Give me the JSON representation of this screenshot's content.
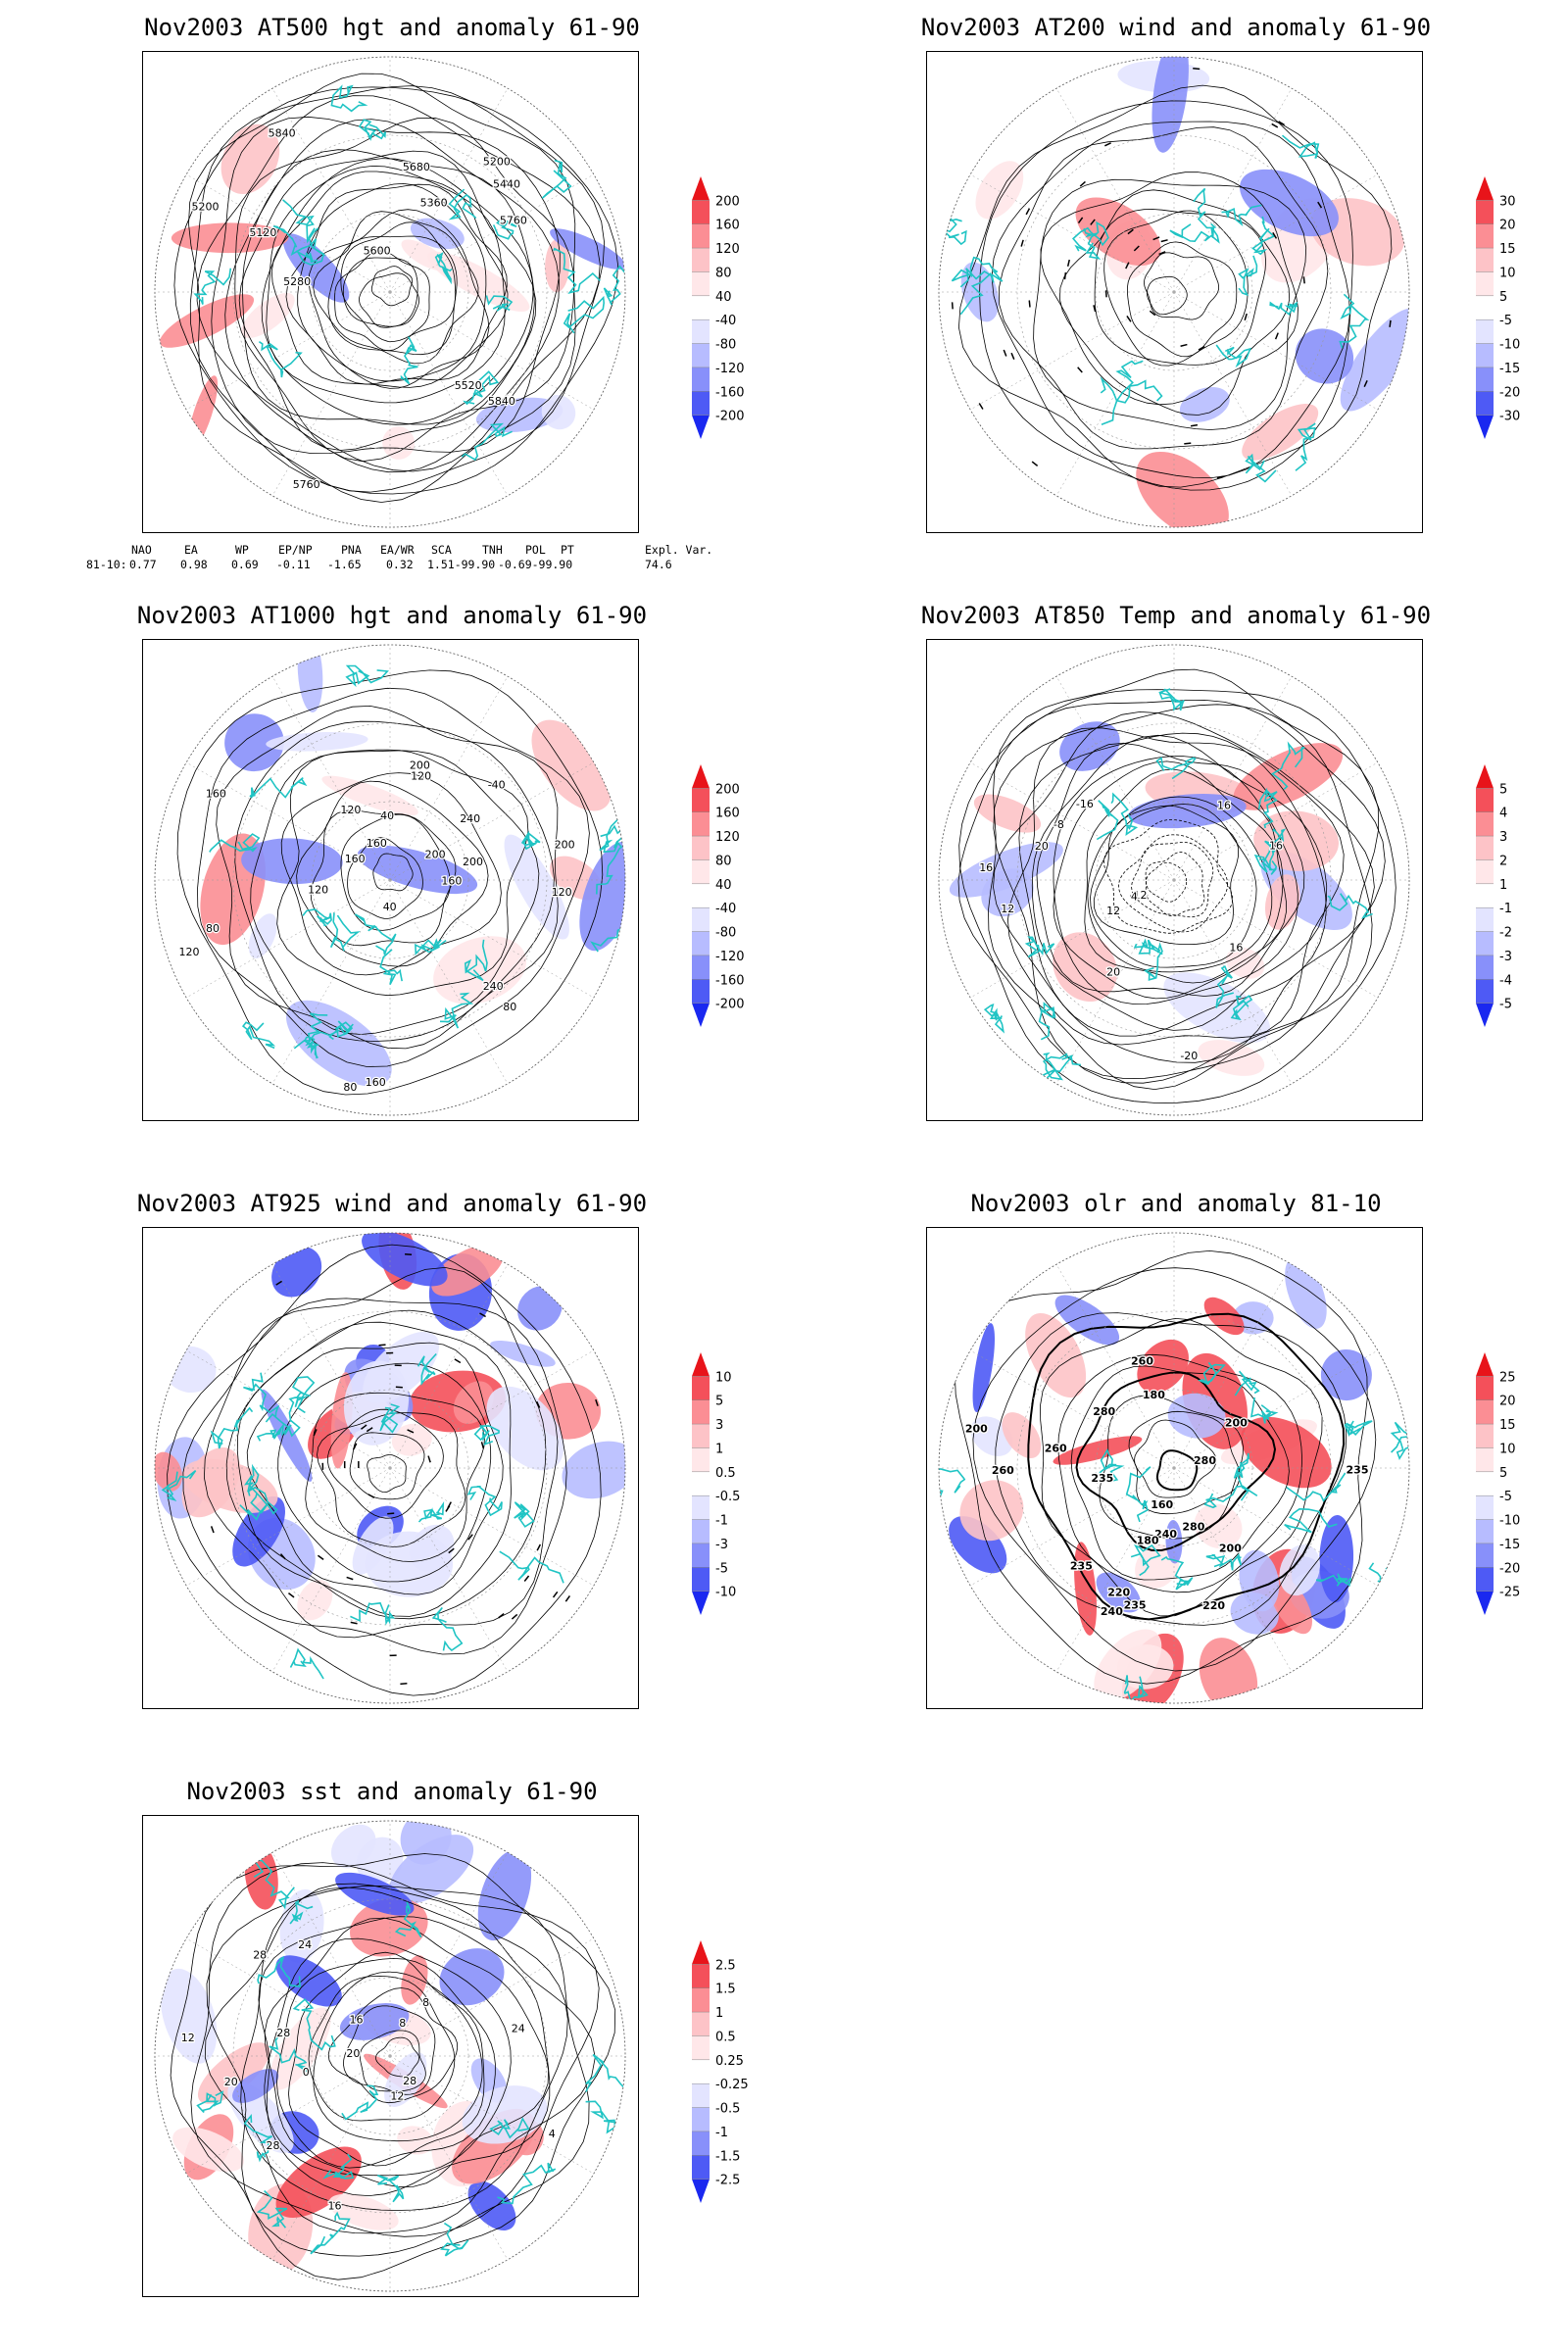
{
  "panels": [
    {
      "id": "p1",
      "title": "Nov2003 AT500 hgt and anomaly 61-90",
      "colorbar": [
        "200",
        "160",
        "120",
        "80",
        "40",
        "-40",
        "-80",
        "-120",
        "-160",
        "-200"
      ],
      "contour_labels": [
        "5840",
        "5760",
        "5200",
        "5120",
        "5200",
        "5280",
        "5360",
        "5440",
        "5520",
        "5600",
        "5680",
        "5760",
        "5840"
      ]
    },
    {
      "id": "p2",
      "title": "Nov2003 AT200 wind and anomaly 61-90",
      "colorbar": [
        "30",
        "20",
        "15",
        "10",
        "5",
        "-5",
        "-10",
        "-15",
        "-20",
        "-30"
      ],
      "contour_labels": []
    },
    {
      "id": "p3",
      "title": "Nov2003 AT1000 hgt and anomaly 61-90",
      "colorbar": [
        "200",
        "160",
        "120",
        "80",
        "40",
        "-40",
        "-80",
        "-120",
        "-160",
        "-200"
      ],
      "contour_labels": [
        "80",
        "120",
        "160",
        "200",
        "240",
        "200",
        "160",
        "120",
        "80",
        "40",
        "40",
        "160",
        "200",
        "240",
        "200",
        "160",
        "120",
        "160",
        "120",
        "120",
        "80",
        "-40"
      ]
    },
    {
      "id": "p4",
      "title": "Nov2003 AT850 Temp and anomaly 61-90",
      "colorbar": [
        "5",
        "4",
        "3",
        "2",
        "1",
        "-1",
        "-2",
        "-3",
        "-4",
        "-5"
      ],
      "contour_labels": [
        "16",
        "16",
        "12",
        "16",
        "-20",
        "-16",
        "-12",
        "-8",
        "4",
        "12",
        "16",
        "20",
        "20"
      ]
    },
    {
      "id": "p5",
      "title": "Nov2003 AT925 wind and anomaly 61-90",
      "colorbar": [
        "10",
        "5",
        "3",
        "1",
        "0.5",
        "-0.5",
        "-1",
        "-3",
        "-5",
        "-10"
      ],
      "contour_labels": []
    },
    {
      "id": "p6",
      "title": "Nov2003 olr and anomaly 81-10",
      "colorbar": [
        "25",
        "20",
        "15",
        "10",
        "5",
        "-5",
        "-10",
        "-15",
        "-20",
        "-25"
      ],
      "contour_labels": [
        "280",
        "260",
        "235",
        "235",
        "220",
        "200",
        "240",
        "260",
        "280",
        "235",
        "180",
        "160",
        "180",
        "200",
        "220",
        "240",
        "260",
        "280",
        "235",
        "200"
      ]
    },
    {
      "id": "p7",
      "title": "Nov2003 sst and anomaly 61-90",
      "colorbar": [
        "2.5",
        "1.5",
        "1",
        "0.5",
        "0.25",
        "-0.25",
        "-0.5",
        "-1",
        "-1.5",
        "-2.5"
      ],
      "contour_labels": [
        "28",
        "28",
        "24",
        "20",
        "16",
        "12",
        "8",
        "4",
        "0",
        "28",
        "24",
        "20",
        "16",
        "12",
        "8",
        "28"
      ]
    }
  ],
  "teleconnections": {
    "headers": [
      "NAO",
      "EA",
      "WP",
      "EP/NP",
      "PNA",
      "EA/WR",
      "SCA",
      "TNH",
      "POL",
      "PT",
      "Expl. Var."
    ],
    "row_label": "81-10:",
    "values": [
      "0.77",
      "0.98",
      "0.69",
      "-0.11",
      "-1.65",
      "0.32",
      "1.51-99.90",
      "-0.69-99.90",
      "74.6"
    ]
  },
  "colors": {
    "coast": "#20c4c4",
    "positive_strong": "#e8141a",
    "negative_strong": "#1a28f0",
    "contour": "#000000"
  }
}
